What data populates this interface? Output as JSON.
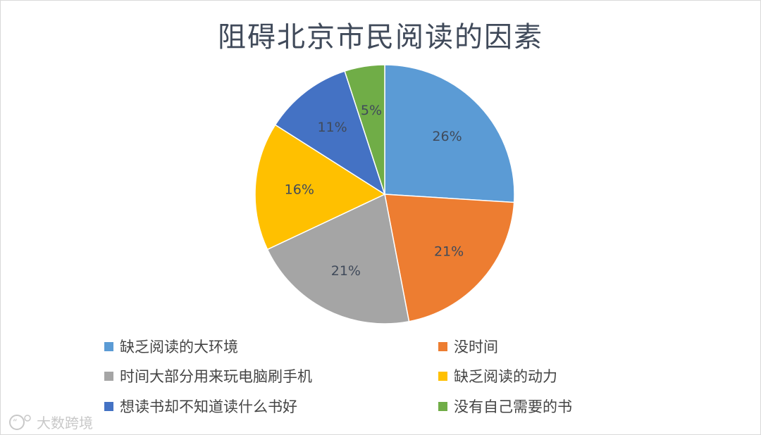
{
  "chart_data": {
    "type": "pie",
    "title": "阻碍北京市民阅读的因素",
    "legend_placement": "bottom",
    "series": [
      {
        "label": "缺乏阅读的大环境",
        "value": 26,
        "display": "26%",
        "color": "#5b9bd5"
      },
      {
        "label": "没时间",
        "value": 21,
        "display": "21%",
        "color": "#ed7d31"
      },
      {
        "label": "时间大部分用来玩电脑刷手机",
        "value": 21,
        "display": "21%",
        "color": "#a5a5a5"
      },
      {
        "label": "缺乏阅读的动力",
        "value": 16,
        "display": "16%",
        "color": "#ffc000"
      },
      {
        "label": "想读书却不知道读什么书好",
        "value": 11,
        "display": "11%",
        "color": "#4472c4"
      },
      {
        "label": "没有自己需要的书",
        "value": 5,
        "display": "5%",
        "color": "#70ad47"
      }
    ]
  },
  "watermark": {
    "text": "大数跨境",
    "icon": "quote-bubble-icon"
  }
}
